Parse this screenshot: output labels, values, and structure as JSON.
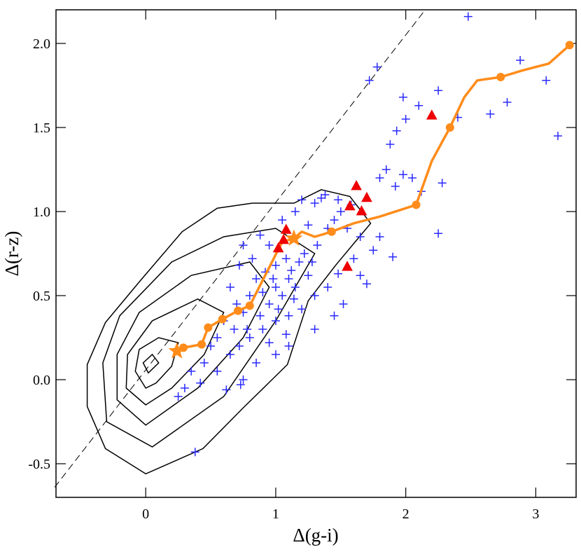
{
  "chart_data": {
    "type": "scatter",
    "xlabel": "Δ(g-i)",
    "ylabel": "Δ(r-z)",
    "xlim": [
      -0.69,
      3.31
    ],
    "ylim": [
      -0.7,
      2.2
    ],
    "xticks": [
      0,
      1,
      2,
      3
    ],
    "yticks": [
      -0.5,
      {
        "value": 0,
        "label": "0.0"
      },
      0.5,
      {
        "value": 1,
        "label": "1.0"
      },
      1.5,
      {
        "value": 2,
        "label": "2.0"
      }
    ],
    "series": [
      {
        "style": "contour",
        "color": "#000000",
        "x": [
          0,
          -0.31,
          -0.45,
          -0.45,
          -0.31,
          -0.04,
          0.28,
          0.55,
          0.82,
          1.14,
          1.35,
          1.57,
          1.73,
          1.46,
          1.25,
          1.09,
          0.76,
          0.44
        ],
        "values": [
          -0.56,
          -0.41,
          -0.16,
          0.09,
          0.34,
          0.59,
          0.88,
          1.02,
          1.05,
          1.05,
          1.13,
          1.09,
          0.93,
          0.68,
          0.47,
          0.09,
          -0.16,
          -0.41
        ]
      },
      {
        "style": "contour",
        "color": "#000000",
        "x": [
          0.05,
          -0.3,
          -0.33,
          -0.2,
          0.2,
          0.6,
          1.0,
          1.3,
          1.0,
          0.6
        ],
        "values": [
          -0.4,
          -0.25,
          0.1,
          0.38,
          0.7,
          0.85,
          0.9,
          0.75,
          0.35,
          -0.1
        ]
      },
      {
        "style": "contour",
        "color": "#000000",
        "x": [
          0,
          -0.22,
          -0.22,
          -0.05,
          0.35,
          0.8,
          0.95,
          0.75,
          0.4
        ],
        "values": [
          -0.27,
          -0.12,
          0.15,
          0.4,
          0.62,
          0.7,
          0.55,
          0.25,
          -0.05
        ]
      },
      {
        "style": "contour",
        "color": "#000000",
        "x": [
          0,
          -0.15,
          -0.14,
          0.05,
          0.4,
          0.6,
          0.45,
          0.2
        ],
        "values": [
          -0.15,
          -0.05,
          0.15,
          0.35,
          0.48,
          0.4,
          0.15,
          -0.05
        ]
      },
      {
        "style": "contour",
        "color": "#000000",
        "x": [
          0,
          -0.08,
          -0.05,
          0.1,
          0.25,
          0.2,
          0.08
        ],
        "values": [
          -0.05,
          0.05,
          0.18,
          0.25,
          0.22,
          0.08,
          -0.02
        ]
      },
      {
        "style": "contour",
        "color": "#000000",
        "x": [
          0.02,
          -0.02,
          0.05,
          0.1
        ],
        "values": [
          0.04,
          0.1,
          0.15,
          0.1
        ]
      },
      {
        "style": "dashed",
        "color": "#000000",
        "x": [
          -0.7,
          2.15
        ],
        "values": [
          -0.64,
          2.2
        ]
      },
      {
        "style": "plus",
        "color": "#2a2aff",
        "x": [
          2.48,
          1.78,
          1.72,
          2.0,
          2.1,
          2.25,
          2.4,
          1.98,
          2.65,
          2.78,
          2.88,
          3.08,
          3.17,
          1.93,
          1.88,
          1.8,
          1.85,
          1.92,
          1.98,
          2.05,
          2.28,
          2.12,
          2.25,
          1.9,
          1.8,
          1.75,
          1.6,
          1.65,
          1.7,
          1.48,
          1.4,
          1.45,
          1.52,
          1.3,
          1.25,
          1.15,
          1.1,
          1.05,
          1.0,
          0.95,
          0.9,
          0.85,
          0.8,
          0.75,
          0.7,
          0.65,
          0.6,
          0.55,
          0.5,
          0.45,
          0.35,
          0.3,
          0.25,
          0.42,
          0.55,
          0.65,
          0.72,
          0.8,
          0.9,
          1.0,
          1.1,
          1.2,
          1.3,
          1.1,
          1.0,
          0.95,
          0.85,
          0.75,
          0.62,
          0.82,
          0.75,
          0.88,
          0.95,
          1.05,
          1.15,
          1.2,
          1.3,
          1.35,
          1.25,
          1.32,
          1.4,
          1.45,
          1.5,
          1.58,
          1.48,
          1.38,
          1.0,
          1.08,
          1.12,
          1.18,
          1.22,
          1.28,
          0.92,
          0.98,
          0.72,
          0.78,
          0.68,
          1.65,
          1.55,
          0.38,
          0.73,
          1.08,
          1.14,
          0.88,
          1.02
        ],
        "values": [
          2.16,
          1.86,
          1.78,
          1.55,
          1.63,
          1.72,
          1.56,
          1.68,
          1.58,
          1.65,
          1.9,
          1.78,
          1.45,
          1.48,
          1.4,
          1.2,
          1.25,
          1.15,
          1.22,
          1.2,
          1.17,
          1.12,
          0.87,
          0.73,
          0.85,
          0.77,
          0.72,
          0.62,
          0.57,
          0.63,
          0.55,
          0.38,
          0.45,
          0.5,
          0.62,
          0.55,
          0.6,
          0.5,
          0.55,
          0.45,
          0.52,
          0.6,
          0.5,
          0.4,
          0.45,
          0.55,
          0.35,
          0.25,
          0.2,
          0.1,
          0.05,
          -0.05,
          -0.1,
          -0.02,
          0.05,
          0.15,
          0.2,
          0.25,
          0.3,
          0.35,
          0.38,
          0.42,
          0.3,
          0.2,
          0.15,
          0.22,
          0.1,
          0,
          -0.06,
          0.72,
          0.8,
          0.86,
          0.8,
          0.95,
          1.0,
          1.07,
          1.05,
          1.08,
          0.92,
          0.8,
          0.9,
          0.95,
          1.0,
          1.04,
          1.07,
          1.1,
          0.68,
          0.72,
          0.65,
          0.7,
          0.75,
          0.7,
          0.64,
          0.6,
          0.68,
          0.3,
          0.3,
          0.85,
          0.9,
          -0.43,
          -0.03,
          0.27,
          0.48,
          0.38,
          0.42
        ]
      },
      {
        "style": "line",
        "color": "#ff8c1a",
        "x": [
          0.24,
          0.29,
          0.43,
          0.48,
          0.59,
          0.71,
          0.8,
          1.05,
          1.14,
          1.2,
          1.3,
          1.43,
          1.6,
          1.8,
          2.08,
          2.2,
          2.34,
          2.45,
          2.55,
          2.73,
          2.9,
          3.1,
          3.26
        ],
        "values": [
          0.17,
          0.19,
          0.21,
          0.31,
          0.36,
          0.41,
          0.44,
          0.82,
          0.84,
          0.88,
          0.85,
          0.88,
          0.93,
          0.97,
          1.04,
          1.3,
          1.5,
          1.68,
          1.78,
          1.8,
          1.84,
          1.88,
          1.99
        ]
      },
      {
        "style": "circle",
        "color": "#ff8c1a",
        "x": [
          0.29,
          0.43,
          0.48,
          0.59,
          0.71,
          0.8,
          1.43,
          2.08,
          2.34,
          2.73,
          3.26
        ],
        "values": [
          0.19,
          0.21,
          0.31,
          0.36,
          0.41,
          0.44,
          0.88,
          1.04,
          1.5,
          1.8,
          1.99
        ]
      },
      {
        "style": "star",
        "color": "#ff8c1a",
        "x": [
          0.24,
          1.14
        ],
        "values": [
          0.17,
          0.84
        ]
      },
      {
        "style": "triangle",
        "color": "#ee0000",
        "x": [
          1.08,
          1.02,
          1.06,
          1.62,
          1.57,
          1.7,
          1.66,
          1.55,
          2.2
        ],
        "values": [
          0.89,
          0.78,
          0.83,
          1.15,
          1.03,
          1.08,
          1.0,
          0.67,
          1.57
        ]
      }
    ]
  }
}
